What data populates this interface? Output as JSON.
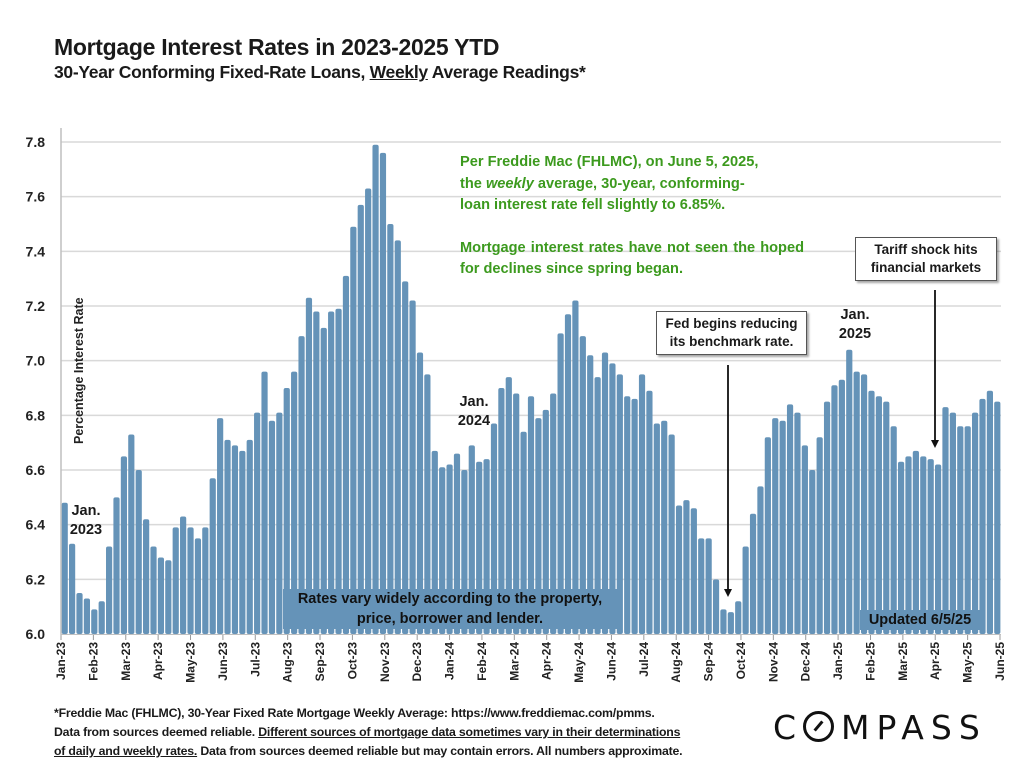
{
  "header": {
    "title": "Mortgage Interest Rates in 2023-2025 YTD",
    "subtitle_before": "30-Year Conforming Fixed-Rate Loans, ",
    "subtitle_underlined": "Weekly",
    "subtitle_after": " Average Readings*"
  },
  "annotations": {
    "green_line1": "Per Freddie Mac (FHLMC), on June 5, 2025,",
    "green_line2_pre": "the ",
    "green_line2_italic": "weekly",
    "green_line2_post": " average, 30-year, conforming-",
    "green_line3": "loan interest rate fell slightly to 6.85%.",
    "green_para2": "Mortgage interest rates have not seen the hoped for declines since spring began.",
    "fed_box": "Fed begins reducing its benchmark rate.",
    "tariff_box": "Tariff shock hits financial markets",
    "jan_2023": "Jan. 2023",
    "jan_2024": "Jan. 2024",
    "jan_2025": "Jan. 2025",
    "rates_vary": "Rates vary widely according to the property, price, borrower and lender.",
    "updated": "Updated 6/5/25"
  },
  "footer": {
    "line1": "*Freddie Mac (FHLMC), 30-Year Fixed Rate Mortgage Weekly Average:  https://www.freddiemac.com/pmms.",
    "line2_pre": "Data from sources deemed reliable. ",
    "line2_underlined": "Different sources of mortgage data sometimes vary in their determinations",
    "line3_underlined": "of daily and weekly rates.",
    "line3_post": " Data from sources deemed reliable but may contain errors. All numbers approximate.",
    "logo": "COMPASS"
  },
  "colors": {
    "bar": "#6593b8",
    "annotation_green": "#3c9a1e",
    "grid": "#d9d9d9"
  },
  "chart_data": {
    "type": "bar",
    "title": "Mortgage Interest Rates in 2023-2025 YTD",
    "subtitle": "30-Year Conforming Fixed-Rate Loans, Weekly Average Readings*",
    "xlabel": "",
    "ylabel": "Percentage Interest Rate",
    "ylim": [
      6.0,
      7.8
    ],
    "yticks": [
      "6.0",
      "6.2",
      "6.4",
      "6.6",
      "6.8",
      "7.0",
      "7.2",
      "7.4",
      "7.6",
      "7.8"
    ],
    "grid": true,
    "xtick_labels": [
      "Jan-23",
      "Feb-23",
      "Mar-23",
      "Apr-23",
      "May-23",
      "Jun-23",
      "Jul-23",
      "Aug-23",
      "Sep-23",
      "Oct-23",
      "Nov-23",
      "Dec-23",
      "Jan-24",
      "Feb-24",
      "Mar-24",
      "Apr-24",
      "May-24",
      "Jun-24",
      "Jul-24",
      "Aug-24",
      "Sep-24",
      "Oct-24",
      "Nov-24",
      "Dec-24",
      "Jan-25",
      "Feb-25",
      "Mar-25",
      "Apr-25",
      "May-25",
      "Jun-25"
    ],
    "series": [
      {
        "name": "30-Year Fixed Rate Weekly Average",
        "values": [
          6.48,
          6.33,
          6.15,
          6.13,
          6.09,
          6.12,
          6.32,
          6.5,
          6.65,
          6.73,
          6.6,
          6.42,
          6.32,
          6.28,
          6.27,
          6.39,
          6.43,
          6.39,
          6.35,
          6.39,
          6.57,
          6.79,
          6.71,
          6.69,
          6.67,
          6.71,
          6.81,
          6.96,
          6.78,
          6.81,
          6.9,
          6.96,
          7.09,
          7.23,
          7.18,
          7.12,
          7.18,
          7.19,
          7.31,
          7.49,
          7.57,
          7.63,
          7.79,
          7.76,
          7.5,
          7.44,
          7.29,
          7.22,
          7.03,
          6.95,
          6.67,
          6.61,
          6.62,
          6.66,
          6.6,
          6.69,
          6.63,
          6.64,
          6.77,
          6.9,
          6.94,
          6.88,
          6.74,
          6.87,
          6.79,
          6.82,
          6.88,
          7.1,
          7.17,
          7.22,
          7.09,
          7.02,
          6.94,
          7.03,
          6.99,
          6.95,
          6.87,
          6.86,
          6.95,
          6.89,
          6.77,
          6.78,
          6.73,
          6.47,
          6.49,
          6.46,
          6.35,
          6.35,
          6.2,
          6.09,
          6.08,
          6.12,
          6.32,
          6.44,
          6.54,
          6.72,
          6.79,
          6.78,
          6.84,
          6.81,
          6.69,
          6.6,
          6.72,
          6.85,
          6.91,
          6.93,
          7.04,
          6.96,
          6.95,
          6.89,
          6.87,
          6.85,
          6.76,
          6.63,
          6.65,
          6.67,
          6.65,
          6.64,
          6.62,
          6.83,
          6.81,
          6.76,
          6.76,
          6.81,
          6.86,
          6.89,
          6.85
        ]
      }
    ],
    "annotations": [
      {
        "text": "Jan. 2023",
        "at_week": 0
      },
      {
        "text": "Jan. 2024",
        "at_week": 52
      },
      {
        "text": "Jan. 2025",
        "at_week": 104
      },
      {
        "text": "Fed begins reducing its benchmark rate.",
        "arrow_to_week": 89
      },
      {
        "text": "Tariff shock hits financial markets",
        "arrow_to_week": 117
      }
    ]
  }
}
